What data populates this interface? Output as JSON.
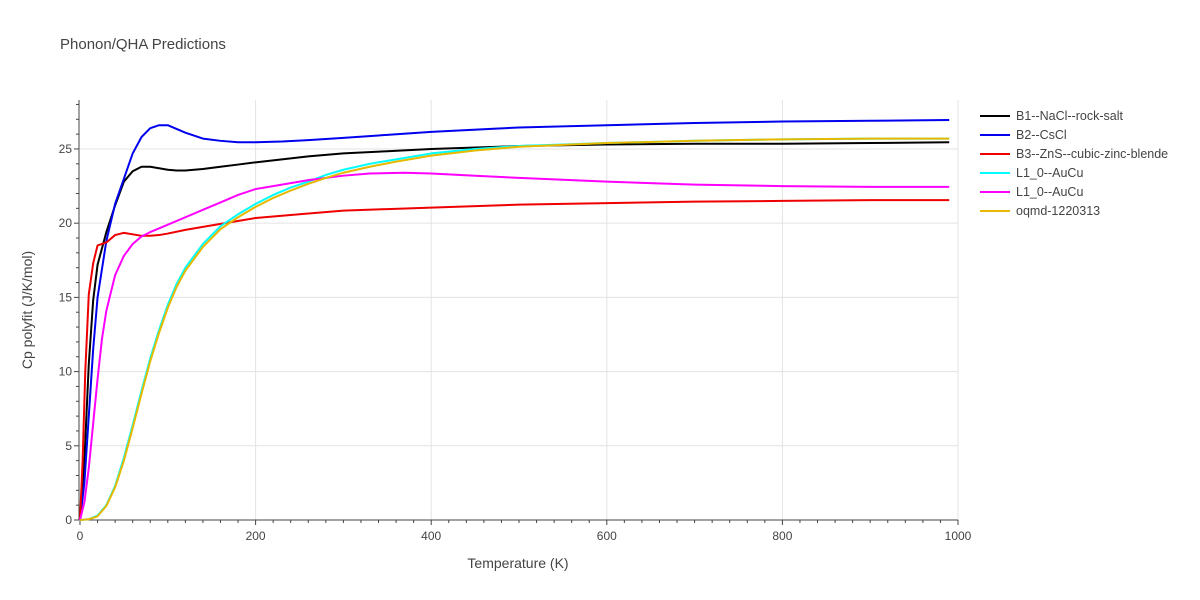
{
  "chart_data": {
    "type": "line",
    "title": "Phonon/QHA Predictions",
    "xlabel": "Temperature (K)",
    "ylabel": "Cp polyfit (J/K/mol)",
    "xlim": [
      0,
      1000
    ],
    "ylim": [
      0,
      28.3
    ],
    "xticks": [
      0,
      200,
      400,
      600,
      800,
      1000
    ],
    "yticks": [
      0,
      5,
      10,
      15,
      20,
      25
    ],
    "grid": true,
    "legend_position": "right",
    "series": [
      {
        "name": "B1--NaCl--rock-salt",
        "color": "#000000",
        "x": [
          0,
          5,
          10,
          15,
          20,
          30,
          40,
          50,
          60,
          70,
          80,
          90,
          100,
          110,
          120,
          140,
          160,
          180,
          200,
          230,
          260,
          300,
          350,
          400,
          500,
          600,
          700,
          800,
          900,
          990
        ],
        "y": [
          0,
          4,
          10.5,
          14.8,
          17.2,
          19.4,
          21.2,
          22.8,
          23.5,
          23.8,
          23.8,
          23.7,
          23.6,
          23.55,
          23.55,
          23.65,
          23.8,
          23.95,
          24.1,
          24.3,
          24.5,
          24.7,
          24.85,
          25.0,
          25.2,
          25.3,
          25.35,
          25.35,
          25.4,
          25.45
        ]
      },
      {
        "name": "B2--CsCl",
        "color": "#0000ee",
        "x": [
          0,
          5,
          10,
          15,
          20,
          30,
          40,
          50,
          60,
          70,
          80,
          90,
          100,
          110,
          120,
          140,
          160,
          180,
          200,
          230,
          260,
          300,
          350,
          400,
          500,
          600,
          700,
          800,
          900,
          990
        ],
        "y": [
          0,
          2.5,
          7,
          11.5,
          15,
          18.8,
          21.3,
          23,
          24.7,
          25.8,
          26.4,
          26.6,
          26.6,
          26.35,
          26.1,
          25.7,
          25.55,
          25.45,
          25.45,
          25.5,
          25.6,
          25.75,
          25.95,
          26.15,
          26.45,
          26.6,
          26.75,
          26.85,
          26.9,
          26.95
        ]
      },
      {
        "name": "B3--ZnS--cubic-zinc-blende",
        "color": "#ee0000",
        "x": [
          0,
          3,
          6,
          10,
          15,
          20,
          25,
          30,
          40,
          50,
          60,
          70,
          80,
          90,
          100,
          120,
          150,
          200,
          250,
          300,
          350,
          400,
          500,
          600,
          700,
          800,
          900,
          990
        ],
        "y": [
          0,
          4,
          10,
          15.2,
          17.3,
          18.5,
          18.6,
          18.7,
          19.2,
          19.35,
          19.25,
          19.15,
          19.15,
          19.2,
          19.3,
          19.55,
          19.85,
          20.35,
          20.6,
          20.85,
          20.95,
          21.05,
          21.25,
          21.35,
          21.45,
          21.5,
          21.55,
          21.55
        ]
      },
      {
        "name": "L1_0--AuCu",
        "color": "#00ffff",
        "x": [
          0,
          10,
          20,
          30,
          40,
          50,
          60,
          70,
          80,
          90,
          100,
          110,
          120,
          140,
          160,
          180,
          200,
          220,
          240,
          260,
          280,
          300,
          330,
          360,
          400,
          450,
          500,
          600,
          700,
          800,
          900,
          990
        ],
        "y": [
          0,
          0.05,
          0.3,
          1.0,
          2.3,
          4.2,
          6.4,
          8.7,
          10.9,
          12.8,
          14.5,
          15.9,
          17.0,
          18.6,
          19.8,
          20.6,
          21.3,
          21.9,
          22.4,
          22.8,
          23.25,
          23.6,
          24.0,
          24.3,
          24.7,
          25.0,
          25.2,
          25.4,
          25.55,
          25.65,
          25.7,
          25.7
        ]
      },
      {
        "name": "L1_0--AuCu",
        "color": "#ff00ff",
        "x": [
          0,
          5,
          10,
          15,
          20,
          25,
          30,
          40,
          50,
          60,
          70,
          80,
          100,
          120,
          140,
          160,
          180,
          200,
          230,
          260,
          300,
          330,
          370,
          400,
          450,
          500,
          600,
          700,
          800,
          900,
          990
        ],
        "y": [
          0,
          1.2,
          3.5,
          6.5,
          9.5,
          12.2,
          14.1,
          16.5,
          17.8,
          18.6,
          19.1,
          19.4,
          19.9,
          20.4,
          20.9,
          21.4,
          21.9,
          22.3,
          22.6,
          22.9,
          23.2,
          23.35,
          23.4,
          23.35,
          23.2,
          23.05,
          22.8,
          22.6,
          22.5,
          22.45,
          22.45
        ]
      },
      {
        "name": "oqmd-1220313",
        "color": "#e6b800",
        "x": [
          0,
          10,
          20,
          30,
          40,
          50,
          60,
          70,
          80,
          90,
          100,
          110,
          120,
          140,
          160,
          180,
          200,
          220,
          240,
          260,
          280,
          300,
          330,
          360,
          400,
          450,
          500,
          600,
          700,
          800,
          900,
          990
        ],
        "y": [
          0,
          0.05,
          0.25,
          0.95,
          2.2,
          4.0,
          6.2,
          8.5,
          10.7,
          12.6,
          14.3,
          15.7,
          16.8,
          18.4,
          19.6,
          20.4,
          21.1,
          21.7,
          22.2,
          22.65,
          23.05,
          23.4,
          23.8,
          24.15,
          24.55,
          24.9,
          25.15,
          25.4,
          25.55,
          25.65,
          25.7,
          25.7
        ]
      }
    ]
  }
}
